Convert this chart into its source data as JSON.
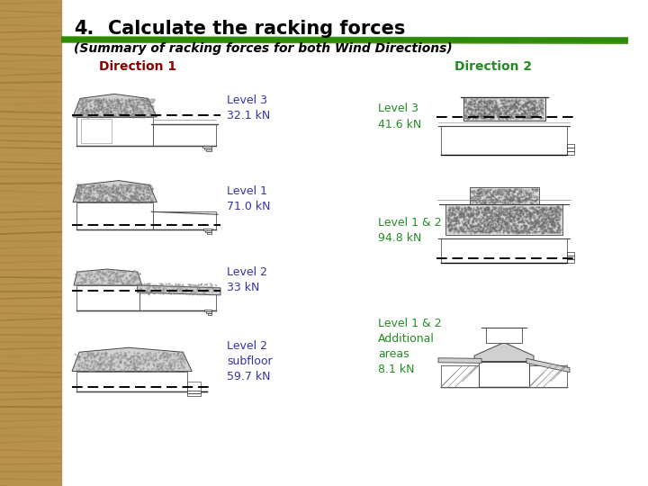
{
  "title_num": "4.",
  "title_text": "Calculate the racking forces",
  "subtitle": "(Summary of racking forces for both Wind Directions)",
  "direction1_label": "Direction 1",
  "direction2_label": "Direction 2",
  "direction1_color": "#8B0000",
  "direction2_color": "#228B22",
  "background_color": "#FFFFFF",
  "sidebar_color": "#C8A060",
  "green_line_color": "#2E8B00",
  "dir1_labels": [
    "Level 3\n32.1 kN",
    "Level 1\n71.0 kN",
    "Level 2\n33 kN",
    "Level 2\nsubfloor\n59.7 kN"
  ],
  "dir2_labels": [
    "Level 3\n41.6 kN",
    "Level 1 & 2\n94.8 kN",
    "Level 1 & 2\nAdditional\nareas\n8.1 kN"
  ],
  "dir1_label_color": "#3333AA",
  "dir2_label_color": "#228B22",
  "title_color": "#000000",
  "subtitle_color": "#000000"
}
